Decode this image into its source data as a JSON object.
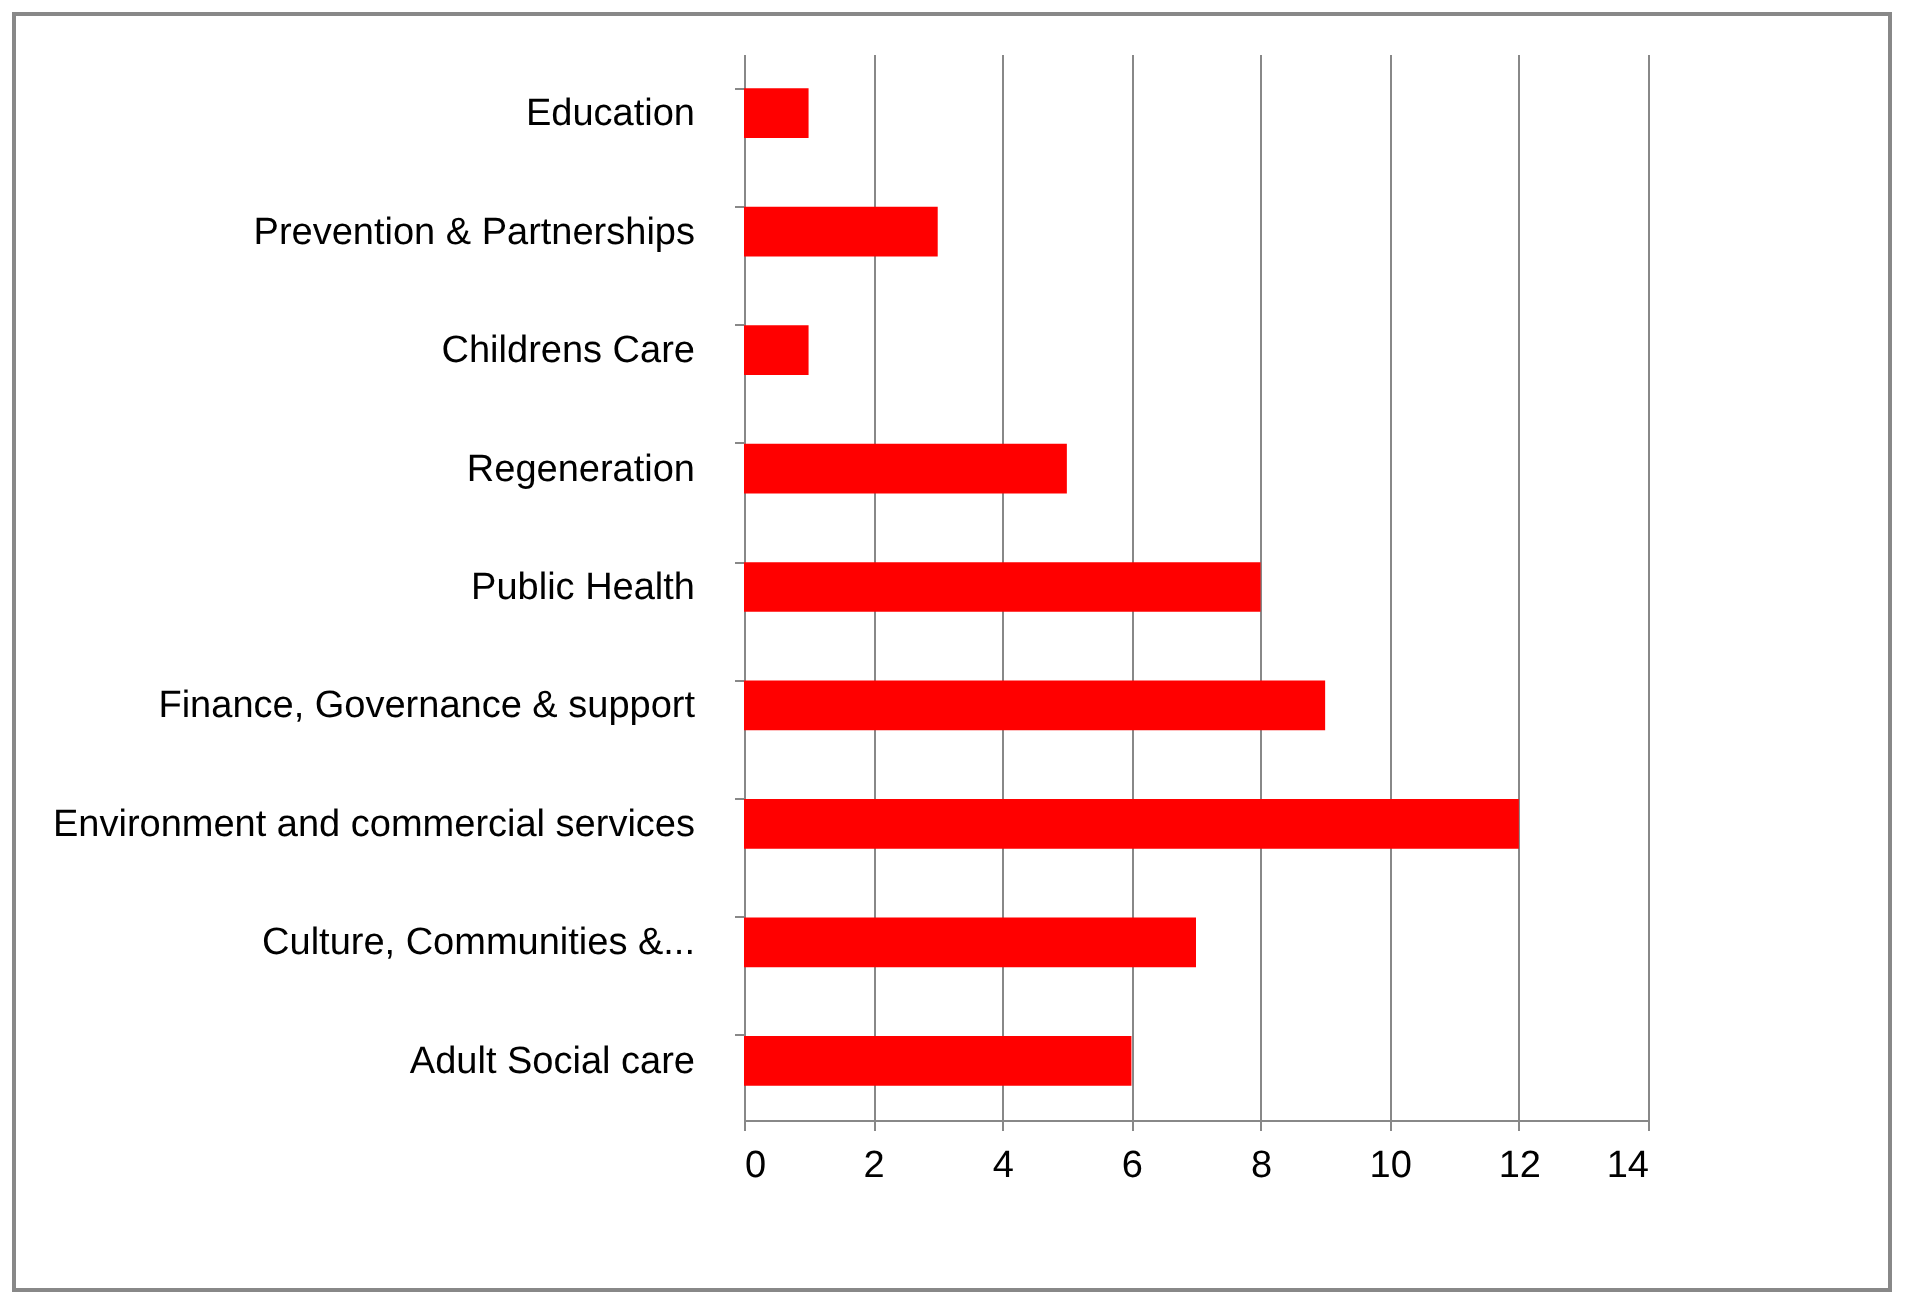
{
  "chart_data": {
    "type": "bar",
    "orientation": "horizontal",
    "categories": [
      "Education",
      "Prevention & Partnerships",
      "Childrens Care",
      "Regeneration",
      "Public Health",
      "Finance, Governance & support",
      "Environment and commercial services",
      "Culture, Communities &...",
      "Adult Social care"
    ],
    "values": [
      1,
      3,
      1,
      5,
      8,
      9,
      12,
      7,
      6
    ],
    "color": "#ff0000",
    "xlim": [
      0,
      14
    ],
    "xticks": [
      0,
      2,
      4,
      6,
      8,
      10,
      12,
      14
    ],
    "grid": "x"
  }
}
